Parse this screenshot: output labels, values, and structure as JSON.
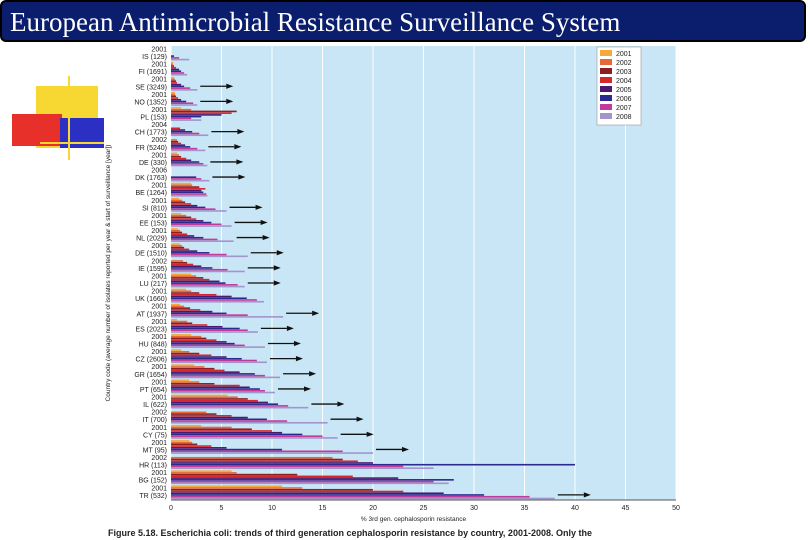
{
  "slide": {
    "title": "European  Antimicrobial Resistance Surveillance System",
    "caption": "Figure 5.18. Escherichia coli: trends of third generation cephalosporin resistance by country, 2001-2008. Only the"
  },
  "colors": {
    "title_bg": "#0b1e6e",
    "plot_bg": "#c8e6f5",
    "deco_yellow": "#f7d731",
    "deco_red": "#e8302a",
    "deco_blue": "#2b2fc4"
  },
  "chart_data": {
    "type": "bar",
    "orientation": "horizontal",
    "title": "",
    "xlabel": "% 3rd gen. cephalosporin resistance",
    "ylabel": "Country code (average number of isolates reported per year & start of surveillance [year])",
    "xlim": [
      0,
      50
    ],
    "xticks": [
      0,
      5,
      10,
      15,
      20,
      25,
      30,
      35,
      40,
      45,
      50
    ],
    "legend_position": "top-right",
    "series": [
      {
        "name": "2001",
        "color": "#f4a93a"
      },
      {
        "name": "2002",
        "color": "#e8683a"
      },
      {
        "name": "2003",
        "color": "#8c1f22"
      },
      {
        "name": "2004",
        "color": "#d4282e"
      },
      {
        "name": "2005",
        "color": "#4a1a70"
      },
      {
        "name": "2006",
        "color": "#2c2a8f"
      },
      {
        "name": "2007",
        "color": "#c23a9a"
      },
      {
        "name": "2008",
        "color": "#a394cc"
      }
    ],
    "categories": [
      {
        "start": "2001",
        "label": "IS (129)",
        "values": [
          0,
          0,
          0,
          0,
          0,
          0.3,
          0.8,
          1.8
        ],
        "arrow": false
      },
      {
        "start": "2001",
        "label": "FI (1691)",
        "values": [
          0.2,
          0.2,
          0.3,
          0.5,
          0.8,
          1.0,
          1.3,
          1.6
        ],
        "arrow": false
      },
      {
        "start": "2001",
        "label": "SE (3249)",
        "values": [
          0.3,
          0.4,
          0.5,
          0.6,
          1.0,
          1.3,
          1.9,
          2.6
        ],
        "arrow": true
      },
      {
        "start": "2001",
        "label": "NO (1352)",
        "values": [
          0.4,
          0.4,
          0.5,
          0.7,
          1.0,
          1.5,
          2.2,
          2.6
        ],
        "arrow": true
      },
      {
        "start": "2001",
        "label": "PL (153)",
        "values": [
          1.0,
          2.0,
          6.5,
          6.0,
          5.0,
          3.0,
          2.0,
          3.0
        ],
        "arrow": false
      },
      {
        "start": "2004",
        "label": "CH (1773)",
        "values": [
          0,
          0,
          0,
          0.9,
          1.4,
          2.1,
          2.8,
          3.7
        ],
        "arrow": true
      },
      {
        "start": "2002",
        "label": "FR (5240)",
        "values": [
          0,
          0.6,
          0.7,
          1.0,
          1.4,
          1.9,
          2.6,
          3.4
        ],
        "arrow": true
      },
      {
        "start": "2001",
        "label": "DE (330)",
        "values": [
          0.6,
          0.8,
          1.0,
          1.5,
          2.0,
          2.8,
          3.2,
          3.6
        ],
        "arrow": true
      },
      {
        "start": "2006",
        "label": "DK (1763)",
        "values": [
          0,
          0,
          0,
          0,
          0,
          2.5,
          3.0,
          3.8
        ],
        "arrow": true
      },
      {
        "start": "2001",
        "label": "BE (1264)",
        "values": [
          2.0,
          2.1,
          2.8,
          3.4,
          3.0,
          3.2,
          3.5,
          3.6
        ],
        "arrow": false
      },
      {
        "start": "2001",
        "label": "SI (810)",
        "values": [
          0.8,
          1.1,
          1.4,
          2.0,
          2.6,
          3.4,
          4.4,
          5.5
        ],
        "arrow": true
      },
      {
        "start": "2001",
        "label": "EE (153)",
        "values": [
          1.0,
          1.5,
          2.0,
          2.5,
          3.2,
          4.0,
          5.0,
          6.0
        ],
        "arrow": true
      },
      {
        "start": "2001",
        "label": "NL (2029)",
        "values": [
          0.7,
          0.9,
          1.1,
          1.6,
          2.3,
          3.2,
          4.6,
          6.2
        ],
        "arrow": true
      },
      {
        "start": "2001",
        "label": "DE (1510)",
        "values": [
          0.9,
          1.1,
          1.3,
          1.8,
          2.6,
          3.8,
          5.5,
          7.6
        ],
        "arrow": true
      },
      {
        "start": "2002",
        "label": "IE (1595)",
        "values": [
          0,
          1.2,
          1.6,
          2.2,
          3.0,
          4.1,
          5.6,
          7.3
        ],
        "arrow": true
      },
      {
        "start": "2001",
        "label": "LU (217)",
        "values": [
          2.0,
          2.5,
          3.2,
          3.8,
          4.8,
          5.4,
          6.6,
          7.3
        ],
        "arrow": true
      },
      {
        "start": "2001",
        "label": "UK (1660)",
        "values": [
          1.5,
          2.0,
          2.8,
          4.5,
          6.0,
          7.5,
          8.5,
          9.2
        ],
        "arrow": false
      },
      {
        "start": "2001",
        "label": "AT (1937)",
        "values": [
          0.9,
          1.3,
          1.9,
          2.9,
          4.1,
          5.5,
          7.6,
          11.1
        ],
        "arrow": true
      },
      {
        "start": "2001",
        "label": "ES (2023)",
        "values": [
          0.6,
          1.6,
          2.1,
          3.6,
          5.1,
          6.8,
          7.6,
          8.6
        ],
        "arrow": true
      },
      {
        "start": "2001",
        "label": "HU (848)",
        "values": [
          2.0,
          3.0,
          3.5,
          4.5,
          5.5,
          6.3,
          7.3,
          9.3
        ],
        "arrow": true
      },
      {
        "start": "2001",
        "label": "CZ (2606)",
        "values": [
          1.0,
          1.8,
          2.8,
          4.0,
          5.5,
          7.0,
          8.5,
          9.5
        ],
        "arrow": true
      },
      {
        "start": "2001",
        "label": "GR (1654)",
        "values": [
          2.3,
          3.3,
          4.3,
          5.3,
          6.8,
          8.3,
          9.3,
          10.8
        ],
        "arrow": true
      },
      {
        "start": "2001",
        "label": "PT (654)",
        "values": [
          1.8,
          2.8,
          4.3,
          6.8,
          7.8,
          8.8,
          9.3,
          10.3
        ],
        "arrow": true
      },
      {
        "start": "2001",
        "label": "IL (622)",
        "values": [
          5.6,
          6.6,
          7.6,
          8.6,
          9.6,
          10.6,
          11.6,
          13.6
        ],
        "arrow": true
      },
      {
        "start": "2002",
        "label": "IT (700)",
        "values": [
          0,
          3.5,
          4.5,
          6.0,
          7.6,
          9.5,
          11.5,
          15.5
        ],
        "arrow": true
      },
      {
        "start": "2001",
        "label": "CY (75)",
        "values": [
          3.0,
          6.0,
          8.0,
          10.0,
          11.0,
          13.0,
          15.0,
          16.5
        ],
        "arrow": true
      },
      {
        "start": "2001",
        "label": "MT (95)",
        "values": [
          1.8,
          2.1,
          2.6,
          4.0,
          5.5,
          11.0,
          17.0,
          20.0
        ],
        "arrow": true
      },
      {
        "start": "2002",
        "label": "HR (113)",
        "values": [
          0,
          16.0,
          17.0,
          18.5,
          20.0,
          40.0,
          23.0,
          26.0
        ],
        "arrow": false
      },
      {
        "start": "2001",
        "label": "BG (152)",
        "values": [
          6.0,
          6.5,
          12.5,
          18.0,
          22.5,
          28.0,
          26.0,
          27.5
        ],
        "arrow": false
      },
      {
        "start": "2001",
        "label": "TR (532)",
        "values": [
          11.0,
          13.0,
          20.0,
          23.0,
          27.0,
          31.0,
          35.5,
          38.0
        ],
        "arrow": true
      }
    ]
  }
}
